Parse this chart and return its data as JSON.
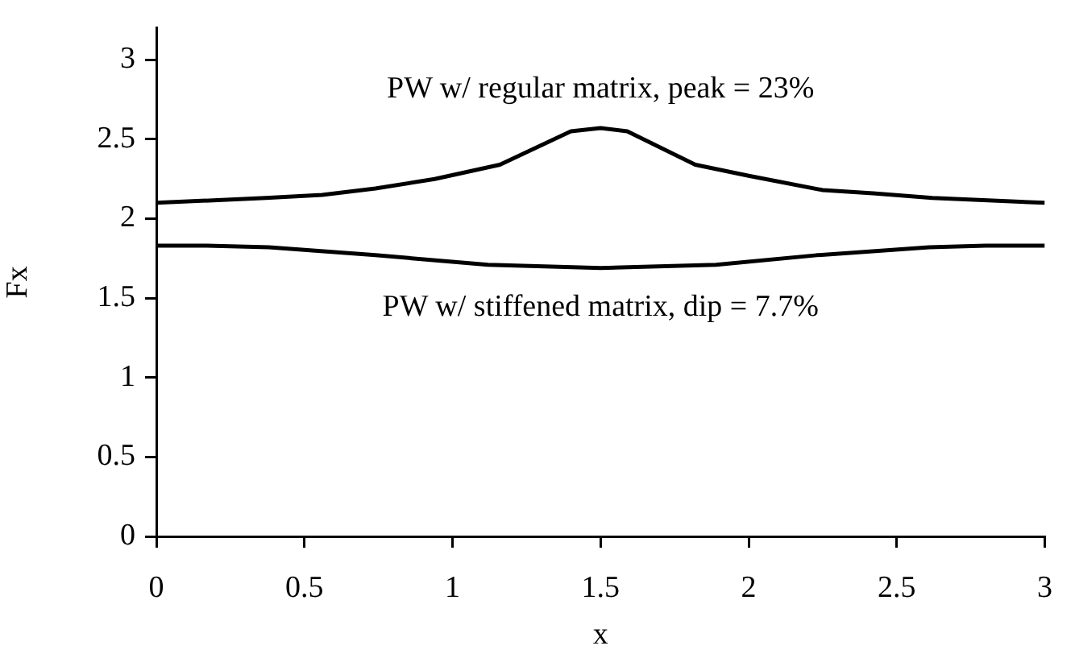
{
  "chart_data": {
    "type": "line",
    "xlabel": "x",
    "ylabel": "Fx",
    "xlim": [
      0,
      3
    ],
    "xticks": [
      0,
      0.5,
      1,
      1.5,
      2,
      2.5,
      3
    ],
    "ylim": [
      0,
      3.2
    ],
    "yticks": [
      0,
      0.5,
      1,
      1.5,
      2,
      2.5,
      3
    ],
    "grid": false,
    "legend": false,
    "marker": "none",
    "line_style": "solid",
    "series": [
      {
        "color": "#000000",
        "x": [
          0,
          0.37,
          0.56,
          0.74,
          0.94,
          1.16,
          1.4,
          1.5,
          1.59,
          1.82,
          2,
          2.25,
          2.42,
          2.62,
          3
        ],
        "values": [
          2.1,
          2.13,
          2.15,
          2.19,
          2.25,
          2.34,
          2.55,
          2.57,
          2.55,
          2.34,
          2.27,
          2.18,
          2.16,
          2.13,
          2.1
        ]
      },
      {
        "color": "#000000",
        "x": [
          0,
          0.17,
          0.38,
          0.74,
          1.12,
          1.5,
          1.89,
          2.23,
          2.61,
          2.8,
          3
        ],
        "values": [
          1.83,
          1.83,
          1.82,
          1.77,
          1.71,
          1.69,
          1.71,
          1.77,
          1.82,
          1.83,
          1.83
        ]
      }
    ],
    "annotations": [
      "PW w/ regular matrix, peak = 23%",
      "PW w/ stiffened matrix, dip = 7.7%"
    ]
  }
}
